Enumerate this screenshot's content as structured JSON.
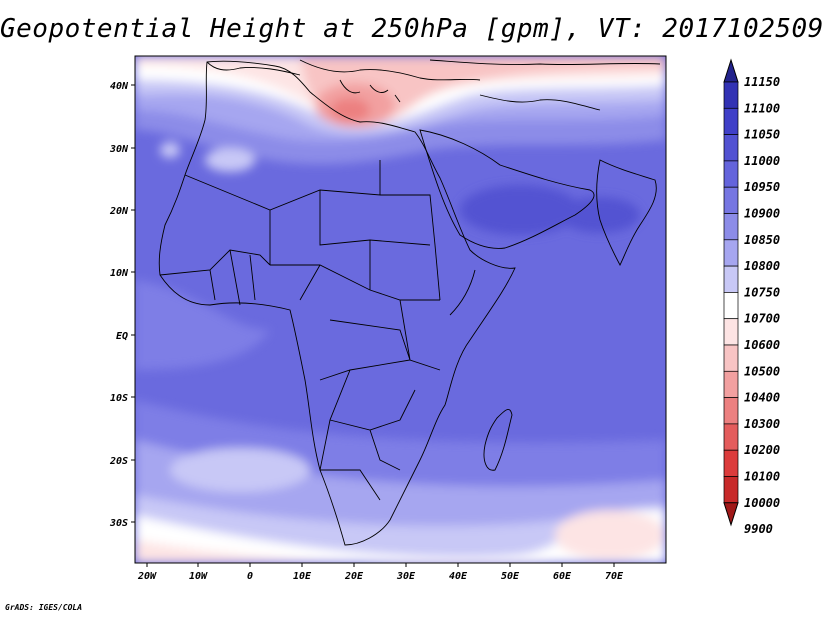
{
  "title": "Geopotential Height at 250hPa [gpm], VT: 2017102509",
  "credit": "GrADS: IGES/COLA",
  "axes": {
    "lon_ticks": [
      "20W",
      "10W",
      "0",
      "10E",
      "20E",
      "30E",
      "40E",
      "50E",
      "60E",
      "70E"
    ],
    "lat_ticks": [
      "40N",
      "30N",
      "20N",
      "10N",
      "EQ",
      "10S",
      "20S",
      "30S"
    ]
  },
  "colorbar": {
    "levels": [
      "11150",
      "11100",
      "11050",
      "11000",
      "10950",
      "10900",
      "10850",
      "10800",
      "10750",
      "10700",
      "10600",
      "10500",
      "10400",
      "10300",
      "10200",
      "10100",
      "10000",
      "9900"
    ],
    "colors": [
      "#23238c",
      "#3232b4",
      "#4040c8",
      "#5252d2",
      "#6464dc",
      "#7676e2",
      "#8c8ce8",
      "#a6a6f0",
      "#c8c8f6",
      "#ffffff",
      "#fde4e4",
      "#f8c4c4",
      "#f2a0a0",
      "#ec8080",
      "#e45c5c",
      "#dc3c3c",
      "#c82a2a",
      "#a01818"
    ]
  },
  "colors": {
    "land_outline": "#000000",
    "frame": "#000000"
  }
}
